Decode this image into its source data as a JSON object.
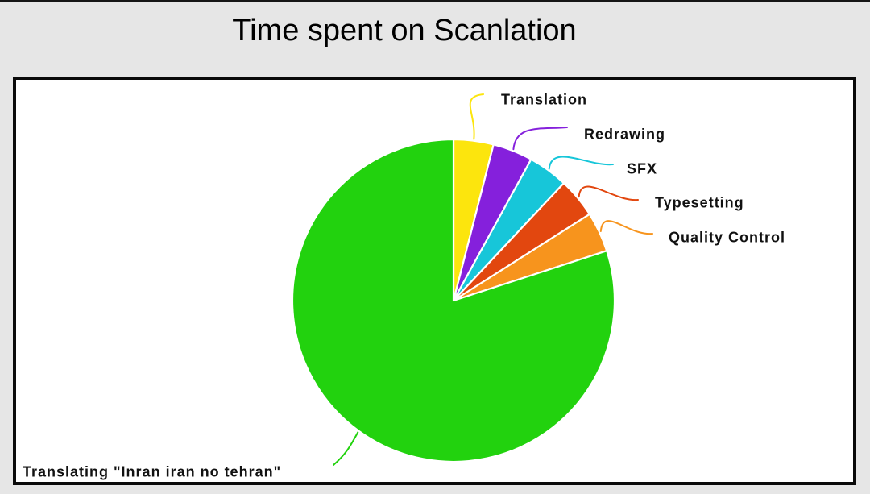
{
  "window": {
    "background_color": "#E6E6E6",
    "top_strip_color": "#161616",
    "plot_border_color": "#0A0A0A",
    "plot_background_color": "#FFFFFF"
  },
  "chart_data": {
    "type": "pie",
    "title": "Time spent on Scanlation",
    "start_angle": "12 o'clock",
    "direction": "clockwise",
    "legend_position": "callout-labels",
    "values_are_estimates": true,
    "slices": [
      {
        "label": "Translation",
        "value": 4,
        "color": "#FCE50D"
      },
      {
        "label": "Redrawing",
        "value": 4,
        "color": "#8520DC"
      },
      {
        "label": "SFX",
        "value": 4,
        "color": "#17C6D9"
      },
      {
        "label": "Typesetting",
        "value": 4,
        "color": "#E2470F"
      },
      {
        "label": "Quality Control",
        "value": 4,
        "color": "#F7941D"
      },
      {
        "label": "Translating \"Inran iran no tehran\"",
        "value": 80,
        "color": "#22D20E"
      }
    ]
  }
}
